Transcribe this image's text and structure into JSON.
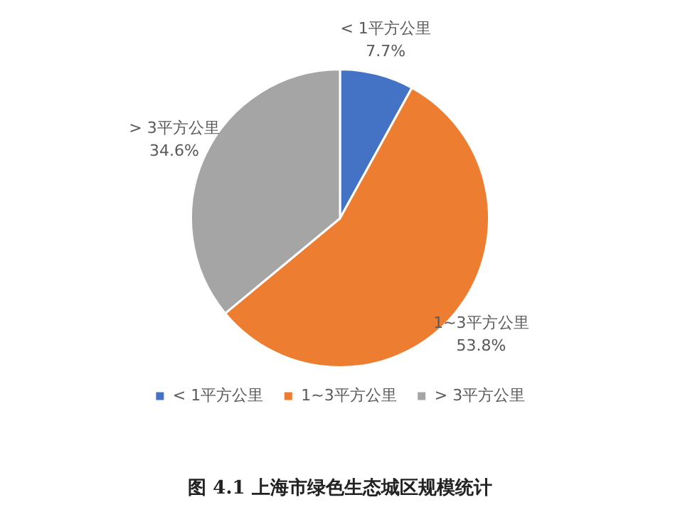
{
  "chart_data": {
    "type": "pie",
    "title": "图 4.1 上海市绿色生态城区规模统计",
    "categories": [
      "< 1平方公里",
      "1~3平方公里",
      "> 3平方公里"
    ],
    "values": [
      7.7,
      53.8,
      34.6
    ],
    "value_labels": [
      "7.7%",
      "53.8%",
      "34.6%"
    ],
    "colors": [
      "#4472c4",
      "#ed7d31",
      "#a5a5a5"
    ],
    "legend": "bottom"
  }
}
